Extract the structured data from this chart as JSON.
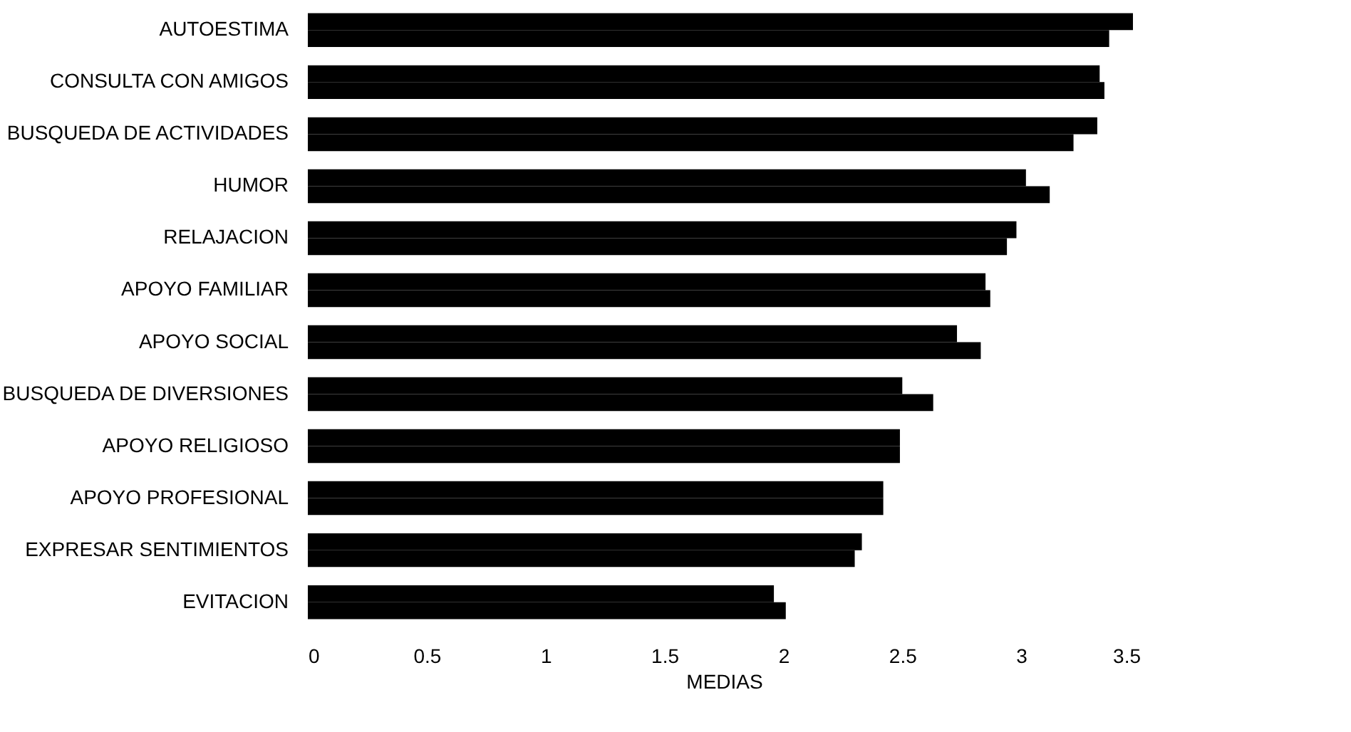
{
  "chart_data": {
    "type": "bar",
    "orientation": "horizontal",
    "xlabel": "MEDIAS",
    "categories": [
      "AUTOESTIMA",
      "CONSULTA CON AMIGOS",
      "BUSQUEDA DE ACTIVIDADES",
      "HUMOR",
      "RELAJACION",
      "APOYO FAMILIAR",
      "APOYO SOCIAL",
      "BUSQUEDA DE DIVERSIONES",
      "APOYO RELIGIOSO",
      "APOYO PROFESIONAL",
      "EXPRESAR SENTIMIENTOS",
      "EVITACION"
    ],
    "series": [
      {
        "color": "#000000",
        "values": [
          3.47,
          3.33,
          3.32,
          3.02,
          2.98,
          2.85,
          2.73,
          2.5,
          2.49,
          2.42,
          2.33,
          1.96
        ]
      },
      {
        "color": "#000000",
        "values": [
          3.37,
          3.35,
          3.22,
          3.12,
          2.94,
          2.87,
          2.83,
          2.63,
          2.49,
          2.42,
          2.3,
          2.01
        ]
      }
    ],
    "xlim": [
      0,
      3.5
    ],
    "xticks": [
      0,
      0.5,
      1,
      1.5,
      2,
      2.5,
      3,
      3.5
    ],
    "grid": false,
    "legend": false
  }
}
